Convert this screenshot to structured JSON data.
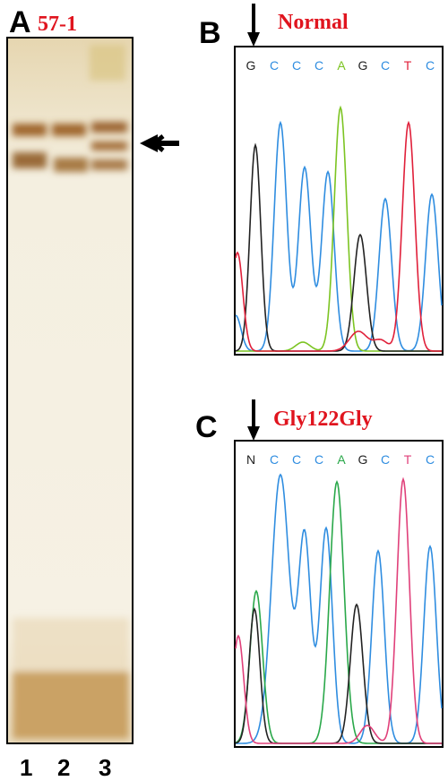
{
  "panel_a": {
    "label": "A",
    "title": "57-1",
    "lanes": [
      "1",
      "2",
      "3"
    ]
  },
  "panel_b": {
    "label": "B",
    "title": "Normal",
    "bases": [
      "G",
      "C",
      "C",
      "C",
      "A",
      "G",
      "C",
      "T",
      "C"
    ]
  },
  "panel_c": {
    "label": "C",
    "title": "Gly122Gly",
    "bases": [
      "N",
      "C",
      "C",
      "C",
      "A",
      "G",
      "C",
      "T",
      "C"
    ]
  }
}
